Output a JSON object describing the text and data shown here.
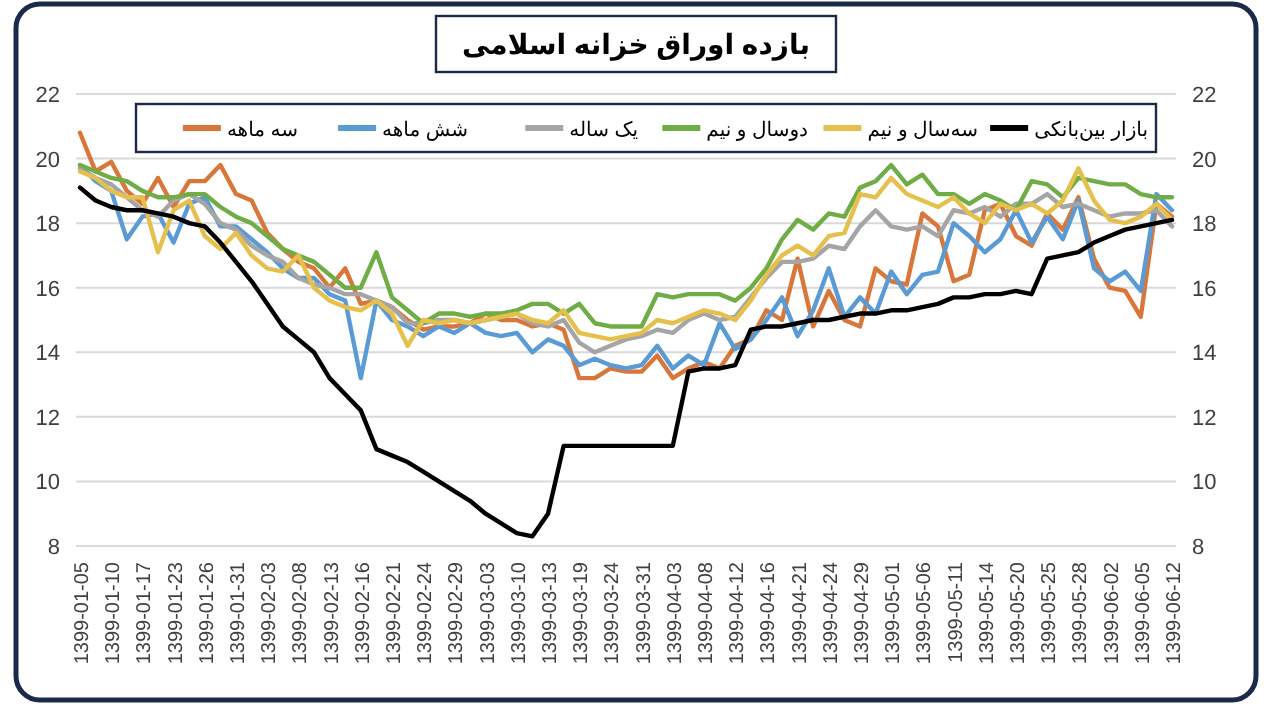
{
  "chart_data": {
    "type": "line",
    "title": "بازده اوراق خزانه اسلامی",
    "categories": [
      "1399-01-05",
      null,
      "1399-01-10",
      null,
      "1399-01-17",
      null,
      "1399-01-23",
      null,
      "1399-01-26",
      null,
      "1399-01-31",
      null,
      "1399-02-03",
      null,
      "1399-02-08",
      null,
      "1399-02-13",
      null,
      "1399-02-16",
      null,
      "1399-02-21",
      null,
      "1399-02-24",
      null,
      "1399-02-29",
      null,
      "1399-03-03",
      null,
      "1399-03-10",
      null,
      "1399-03-13",
      null,
      "1399-03-19",
      null,
      "1399-03-24",
      null,
      "1399-03-31",
      null,
      "1399-04-03",
      null,
      "1399-04-08",
      null,
      "1399-04-12",
      null,
      "1399-04-16",
      null,
      "1399-04-21",
      null,
      "1399-04-24",
      null,
      "1399-04-29",
      null,
      "1399-05-01",
      null,
      "1399-05-06",
      null,
      "1399-05-11",
      null,
      "1399-05-14",
      null,
      "1399-05-20",
      null,
      "1399-05-25",
      null,
      "1399-05-28",
      null,
      "1399-06-02",
      null,
      "1399-06-05",
      null,
      "1399-06-12"
    ],
    "series": [
      {
        "name": "بازار بین‌بانکی",
        "color": "#000000",
        "values": [
          19.1,
          18.7,
          18.5,
          18.4,
          18.4,
          18.3,
          18.2,
          18.0,
          17.9,
          17.4,
          16.8,
          16.2,
          15.5,
          14.8,
          14.4,
          14.0,
          13.2,
          12.7,
          12.2,
          11.0,
          10.8,
          10.6,
          10.3,
          10.0,
          9.7,
          9.4,
          9.0,
          8.7,
          8.4,
          8.3,
          9.0,
          11.1,
          11.1,
          11.1,
          11.1,
          11.1,
          11.1,
          11.1,
          11.1,
          13.4,
          13.5,
          13.5,
          13.6,
          14.7,
          14.8,
          14.8,
          14.9,
          15.0,
          15.0,
          15.1,
          15.2,
          15.2,
          15.3,
          15.3,
          15.4,
          15.5,
          15.7,
          15.7,
          15.8,
          15.8,
          15.9,
          15.8,
          16.9,
          17.0,
          17.1,
          17.4,
          17.6,
          17.8,
          17.9,
          18.0,
          18.1
        ]
      },
      {
        "name": "سه‌سال و نیم",
        "color": "#e6c04c",
        "values": [
          19.6,
          19.4,
          19.0,
          18.8,
          18.8,
          17.1,
          18.4,
          18.7,
          17.6,
          17.2,
          17.7,
          17.0,
          16.6,
          16.5,
          17.0,
          16.0,
          15.6,
          15.4,
          15.3,
          15.6,
          15.2,
          14.2,
          15.0,
          14.9,
          15.0,
          14.9,
          15.0,
          15.1,
          15.2,
          15.0,
          14.9,
          15.3,
          14.6,
          14.5,
          14.4,
          14.5,
          14.6,
          15.0,
          14.9,
          15.1,
          15.3,
          15.2,
          15.0,
          15.6,
          16.4,
          17.0,
          17.3,
          17.0,
          17.6,
          17.7,
          18.9,
          18.8,
          19.4,
          18.9,
          18.7,
          18.5,
          18.8,
          18.3,
          18.0,
          18.6,
          18.4,
          18.6,
          18.3,
          18.7,
          19.7,
          18.7,
          18.1,
          18.0,
          18.2,
          18.6,
          18.1
        ]
      },
      {
        "name": "دوسال و نیم",
        "color": "#70ad47",
        "values": [
          19.8,
          19.6,
          19.4,
          19.3,
          19.0,
          18.8,
          18.8,
          18.9,
          18.9,
          18.5,
          18.2,
          18.0,
          17.6,
          17.2,
          17.0,
          16.8,
          16.4,
          16.0,
          16.0,
          17.1,
          15.7,
          15.3,
          14.9,
          15.2,
          15.2,
          15.1,
          15.2,
          15.2,
          15.3,
          15.5,
          15.5,
          15.2,
          15.5,
          14.9,
          14.8,
          14.8,
          14.8,
          15.8,
          15.7,
          15.8,
          15.8,
          15.8,
          15.6,
          16.0,
          16.6,
          17.5,
          18.1,
          17.8,
          18.3,
          18.2,
          19.1,
          19.3,
          19.8,
          19.2,
          19.5,
          18.9,
          18.9,
          18.6,
          18.9,
          18.7,
          18.4,
          19.3,
          19.2,
          18.8,
          19.4,
          19.3,
          19.2,
          19.2,
          18.9,
          18.8,
          18.8
        ]
      },
      {
        "name": "یک ساله",
        "color": "#a5a5a5",
        "values": [
          19.7,
          19.4,
          19.2,
          18.8,
          18.4,
          18.2,
          18.7,
          18.9,
          18.6,
          18.0,
          17.8,
          17.3,
          17.0,
          16.8,
          16.3,
          16.1,
          16.0,
          15.8,
          15.8,
          15.6,
          15.4,
          14.9,
          14.9,
          15.0,
          15.0,
          14.9,
          15.0,
          15.1,
          15.2,
          14.9,
          14.8,
          15.0,
          14.3,
          14.0,
          14.2,
          14.4,
          14.5,
          14.7,
          14.6,
          15.0,
          15.2,
          15.0,
          15.1,
          15.7,
          16.3,
          16.8,
          16.8,
          16.9,
          17.3,
          17.2,
          17.9,
          18.4,
          17.9,
          17.8,
          17.9,
          17.6,
          18.4,
          18.3,
          18.5,
          18.2,
          18.6,
          18.6,
          18.9,
          18.5,
          18.6,
          18.4,
          18.2,
          18.3,
          18.3,
          18.4,
          17.9
        ]
      },
      {
        "name": "شش ماهه",
        "color": "#5b9bd5",
        "values": [
          19.8,
          19.3,
          19.0,
          17.5,
          18.2,
          18.3,
          17.4,
          18.6,
          18.8,
          17.9,
          17.9,
          17.5,
          17.1,
          16.6,
          16.3,
          16.3,
          15.8,
          15.6,
          13.2,
          15.6,
          15.0,
          14.8,
          14.5,
          14.8,
          14.6,
          14.9,
          14.6,
          14.5,
          14.6,
          14.0,
          14.4,
          14.2,
          13.6,
          13.8,
          13.6,
          13.5,
          13.6,
          14.2,
          13.5,
          13.9,
          13.6,
          14.9,
          14.1,
          14.4,
          15.0,
          15.7,
          14.5,
          15.3,
          16.6,
          15.1,
          15.7,
          15.2,
          16.5,
          15.8,
          16.4,
          16.5,
          18.0,
          17.6,
          17.1,
          17.5,
          18.4,
          17.4,
          18.2,
          17.5,
          18.7,
          16.6,
          16.2,
          16.5,
          15.9,
          18.9,
          18.4
        ]
      },
      {
        "name": "سه ماهه",
        "color": "#d9773a",
        "values": [
          20.8,
          19.6,
          19.9,
          19.0,
          18.6,
          19.4,
          18.5,
          19.3,
          19.3,
          19.8,
          18.9,
          18.7,
          17.7,
          17.2,
          16.8,
          16.6,
          16.0,
          16.6,
          15.5,
          15.6,
          15.4,
          15.0,
          14.7,
          14.8,
          14.8,
          14.9,
          15.2,
          15.0,
          15.0,
          14.8,
          14.9,
          14.7,
          13.2,
          13.2,
          13.5,
          13.4,
          13.4,
          13.9,
          13.2,
          13.5,
          13.7,
          13.5,
          14.2,
          14.4,
          15.3,
          15.0,
          16.9,
          14.8,
          15.9,
          15.0,
          14.8,
          16.6,
          16.2,
          16.1,
          18.3,
          17.9,
          16.2,
          16.4,
          18.4,
          18.6,
          17.6,
          17.3,
          18.3,
          17.8,
          18.8,
          16.9,
          16.0,
          15.9,
          15.1,
          18.6,
          18.2
        ]
      }
    ],
    "ylim": [
      8,
      22
    ],
    "yticks": [
      8,
      10,
      12,
      14,
      16,
      18,
      20,
      22
    ],
    "y2lim": [
      8,
      22
    ],
    "y2ticks": [
      8,
      10,
      12,
      14,
      16,
      18,
      20,
      22
    ],
    "grid": "y",
    "legend": "top",
    "marker": "none",
    "line_style": "solid"
  }
}
